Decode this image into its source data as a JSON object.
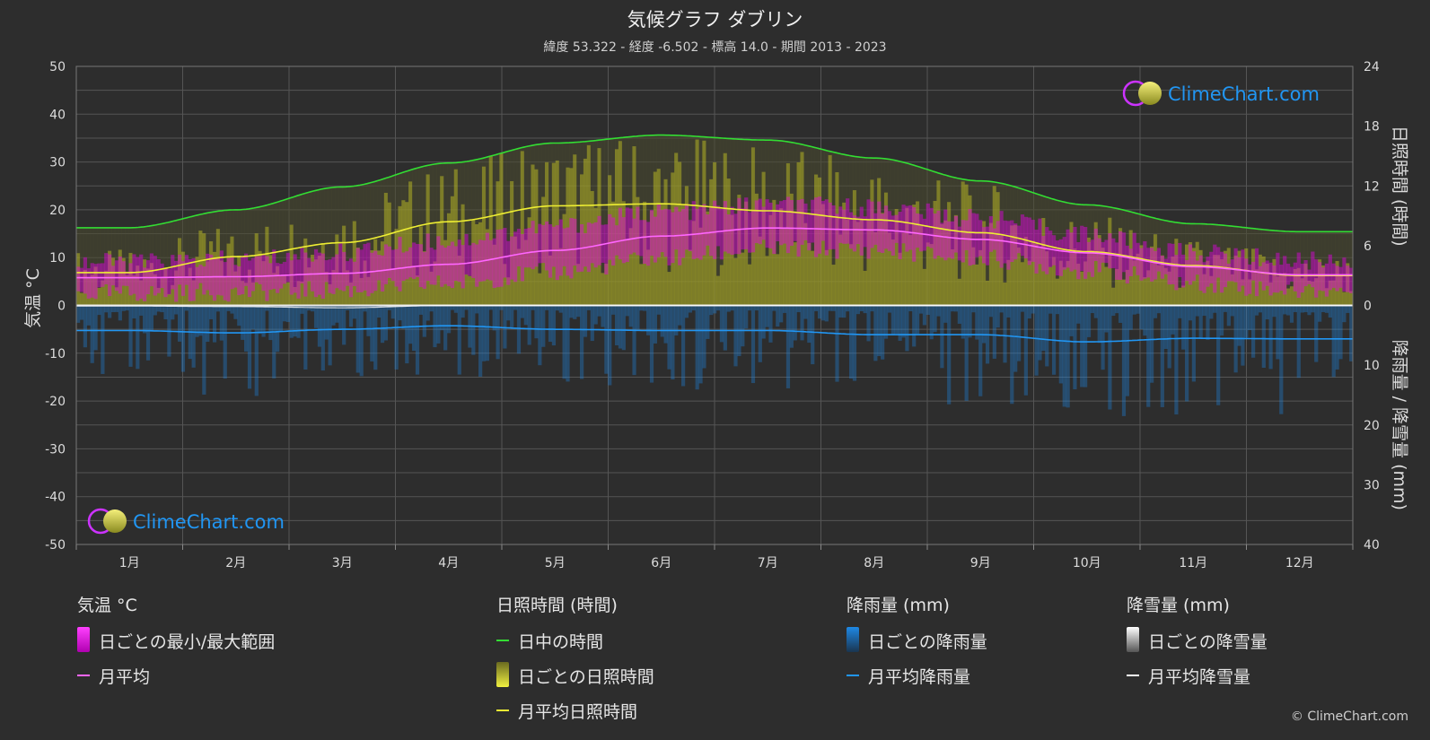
{
  "title": "気候グラフ ダブリン",
  "subtitle": "緯度 53.322 - 経度 -6.502 - 標高 14.0 - 期間 2013 - 2023",
  "watermark": "ClimeChart.com",
  "copyright": "© ClimeChart.com",
  "colors": {
    "background": "#2d2d2d",
    "daylight": "#33dd33",
    "temp_mean": "#ff66ff",
    "temp_range": "#e600e6",
    "sun_mean": "#eeee33",
    "sun_daily": "#cccc22",
    "rain": "#1e88e5",
    "rain_mean": "#2196f3",
    "snow": "#ffffff",
    "logo_text": "#2196f3"
  },
  "chart_data": {
    "type": "line",
    "categories": [
      "1月",
      "2月",
      "3月",
      "4月",
      "5月",
      "6月",
      "7月",
      "8月",
      "9月",
      "10月",
      "11月",
      "12月"
    ],
    "y_left": {
      "label": "気温 °C",
      "min": -50,
      "max": 50,
      "ticks": [
        50,
        40,
        30,
        20,
        10,
        0,
        -10,
        -20,
        -30,
        -40,
        -50
      ]
    },
    "y_right_top": {
      "label": "日照時間 (時間)",
      "min": 0,
      "max": 24,
      "ticks": [
        24,
        18,
        12,
        6,
        0
      ]
    },
    "y_right_bottom": {
      "label": "降雨量 / 降雪量 (mm)",
      "min": 0,
      "max": 40,
      "ticks": [
        10,
        20,
        30,
        40
      ]
    },
    "grid": true,
    "series": [
      {
        "name": "日中の時間",
        "axis": "sun",
        "values": [
          7.8,
          9.6,
          11.9,
          14.3,
          16.3,
          17.1,
          16.6,
          14.8,
          12.5,
          10.1,
          8.2,
          7.4
        ]
      },
      {
        "name": "月平均日照時間",
        "axis": "sun",
        "values": [
          3.3,
          4.9,
          6.3,
          8.4,
          10.0,
          10.2,
          9.5,
          8.6,
          7.3,
          5.4,
          4.0,
          3.0
        ]
      },
      {
        "name": "月平均",
        "axis": "temp",
        "values": [
          5.8,
          6.0,
          6.7,
          8.6,
          11.5,
          14.5,
          16.2,
          15.8,
          13.8,
          11.0,
          8.1,
          6.4
        ]
      },
      {
        "name": "月平均降雨量",
        "axis": "precip",
        "values": [
          4.2,
          4.6,
          4.0,
          3.4,
          4.0,
          4.2,
          4.2,
          4.9,
          4.9,
          6.1,
          5.5,
          5.6
        ]
      },
      {
        "name": "月平均降雪量",
        "axis": "precip",
        "values": [
          0.1,
          0.2,
          0.4,
          0.0,
          0.0,
          0.0,
          0.0,
          0.0,
          0.0,
          0.0,
          0.0,
          0.0
        ]
      }
    ],
    "daily_temp_range": {
      "min": [
        2.5,
        2.8,
        3.2,
        4.6,
        7.0,
        9.8,
        11.8,
        11.6,
        9.8,
        7.4,
        4.6,
        3.2
      ],
      "max": [
        9.0,
        9.5,
        11.0,
        13.5,
        16.5,
        19.5,
        21.0,
        20.5,
        18.2,
        14.8,
        11.0,
        9.4
      ]
    }
  },
  "legend": {
    "temperature": {
      "header": "気温 °C",
      "items": [
        "日ごとの最小/最大範囲",
        "月平均"
      ]
    },
    "sunshine": {
      "header": "日照時間 (時間)",
      "items": [
        "日中の時間",
        "日ごとの日照時間",
        "月平均日照時間"
      ]
    },
    "rain": {
      "header": "降雨量 (mm)",
      "items": [
        "日ごとの降雨量",
        "月平均降雨量"
      ]
    },
    "snow": {
      "header": "降雪量 (mm)",
      "items": [
        "日ごとの降雪量",
        "月平均降雪量"
      ]
    }
  }
}
